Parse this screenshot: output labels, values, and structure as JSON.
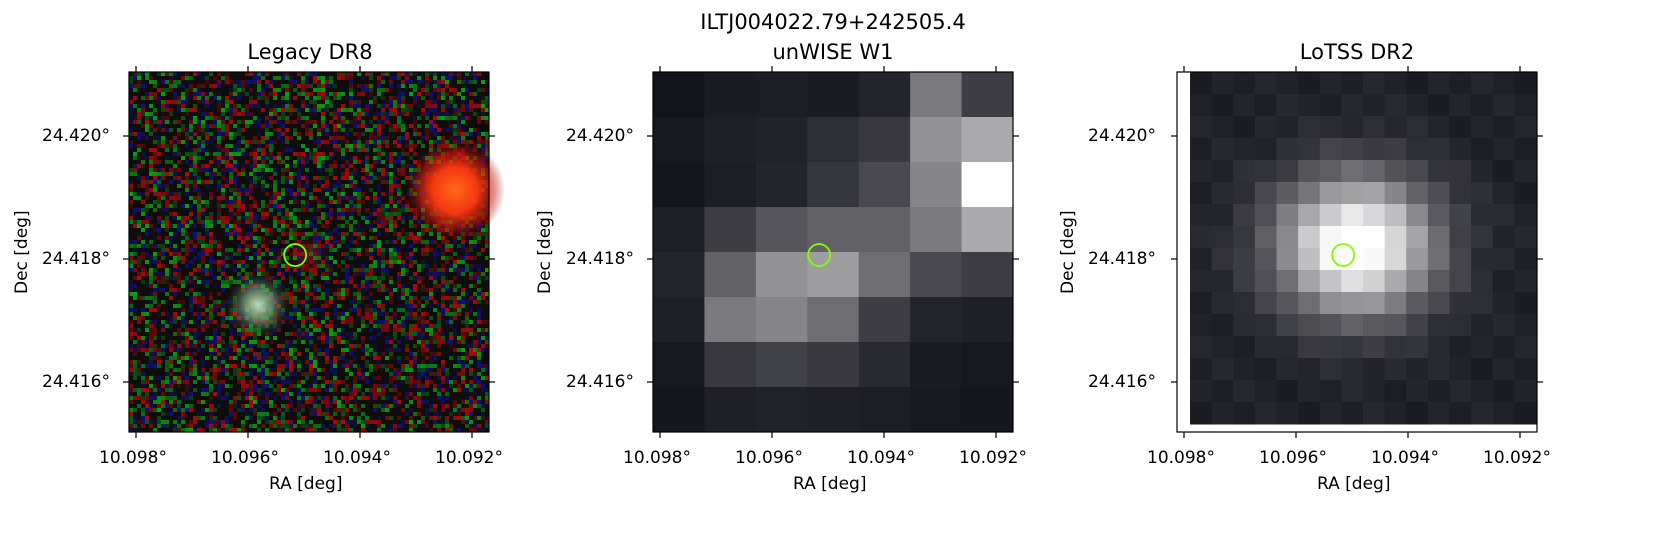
{
  "figure": {
    "title": "ILTJ004022.79+242505.4",
    "marker_color": "#7fff00"
  },
  "chart_data": [
    {
      "type": "heatmap",
      "title": "Legacy DR8",
      "xlabel": "RA [deg]",
      "ylabel": "Dec [deg]",
      "x_ticks": [
        "10.098°",
        "10.096°",
        "10.094°",
        "10.092°"
      ],
      "y_ticks": [
        "24.420°",
        "24.418°",
        "24.416°"
      ],
      "xlim": [
        10.0981,
        10.0916
      ],
      "ylim": [
        24.4152,
        24.4211
      ],
      "marker": {
        "ra": 10.0951,
        "dec": 24.4181
      },
      "sources": [
        {
          "ra": 10.0922,
          "dec": 24.419,
          "color": "red-orange"
        },
        {
          "ra": 10.0959,
          "dec": 24.4173,
          "color": "white-green"
        },
        {
          "ra": 10.095,
          "dec": 24.4181,
          "color": "red"
        }
      ]
    },
    {
      "type": "heatmap",
      "title": "unWISE W1",
      "xlabel": "RA [deg]",
      "ylabel": "Dec [deg]",
      "x_ticks": [
        "10.098°",
        "10.096°",
        "10.094°",
        "10.092°"
      ],
      "y_ticks": [
        "24.420°",
        "24.418°",
        "24.416°"
      ],
      "xlim": [
        10.0981,
        10.0916
      ],
      "ylim": [
        24.4152,
        24.4211
      ],
      "marker": {
        "ra": 10.0951,
        "dec": 24.4181
      },
      "grid": [
        [
          0.03,
          0.06,
          0.07,
          0.06,
          0.1,
          0.45,
          0.2
        ],
        [
          0.05,
          0.08,
          0.09,
          0.14,
          0.18,
          0.55,
          0.65
        ],
        [
          0.04,
          0.07,
          0.1,
          0.17,
          0.25,
          0.5,
          1.0
        ],
        [
          0.08,
          0.2,
          0.3,
          0.35,
          0.35,
          0.45,
          0.65
        ],
        [
          0.1,
          0.35,
          0.55,
          0.6,
          0.4,
          0.25,
          0.2
        ],
        [
          0.08,
          0.45,
          0.5,
          0.4,
          0.2,
          0.1,
          0.08
        ],
        [
          0.05,
          0.18,
          0.22,
          0.18,
          0.12,
          0.06,
          0.05
        ],
        [
          0.04,
          0.08,
          0.09,
          0.08,
          0.07,
          0.05,
          0.04
        ]
      ]
    },
    {
      "type": "heatmap",
      "title": "LoTSS DR2",
      "xlabel": "RA [deg]",
      "ylabel": "Dec [deg]",
      "x_ticks": [
        "10.098°",
        "10.096°",
        "10.094°",
        "10.092°"
      ],
      "y_ticks": [
        "24.420°",
        "24.418°",
        "24.416°"
      ],
      "xlim": [
        10.0981,
        10.0916
      ],
      "ylim": [
        24.4152,
        24.4211
      ],
      "marker": {
        "ra": 10.0951,
        "dec": 24.4181
      },
      "source_center": {
        "ra": 10.0952,
        "dec": 24.4183
      }
    }
  ]
}
